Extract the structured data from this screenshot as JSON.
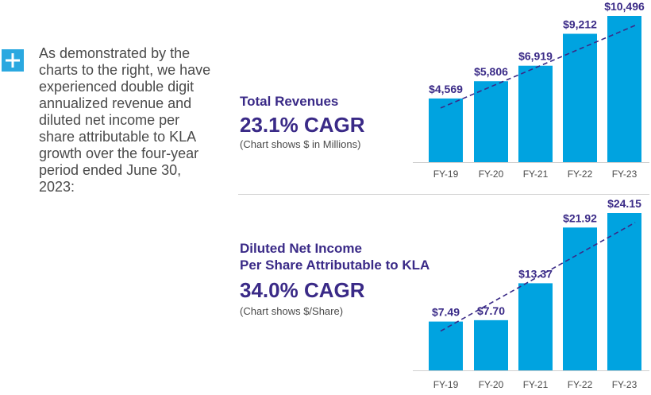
{
  "intro": {
    "icon": "plus-icon",
    "text": "As demonstrated by the charts to the right, we have experienced double digit annualized revenue and diluted net income per share attributable to KLA growth over the four-year period ended June 30, 2023:"
  },
  "colors": {
    "bar": "#00a3e0",
    "title": "#3a2a87",
    "plus_box": "#2aa8e0",
    "trend": "#3a2a87"
  },
  "chart_data": [
    {
      "type": "bar",
      "title": "Total Revenues",
      "cagr": "23.1% CAGR",
      "note": "(Chart shows $ in Millions)",
      "categories": [
        "FY-19",
        "FY-20",
        "FY-21",
        "FY-22",
        "FY-23"
      ],
      "values": [
        4569,
        5806,
        6919,
        9212,
        10496
      ],
      "value_labels": [
        "$4,569",
        "$5,806",
        "$6,919",
        "$9,212",
        "$10,496"
      ],
      "ylim": [
        0,
        10496
      ],
      "trendline": "dashed"
    },
    {
      "type": "bar",
      "title_line1": "Diluted Net Income",
      "title_line2": "Per Share Attributable to KLA",
      "cagr": "34.0% CAGR",
      "note": "(Chart shows $/Share)",
      "categories": [
        "FY-19",
        "FY-20",
        "FY-21",
        "FY-22",
        "FY-23"
      ],
      "values": [
        7.49,
        7.7,
        13.37,
        21.92,
        24.15
      ],
      "value_labels": [
        "$7.49",
        "$7.70",
        "$13.37",
        "$21.92",
        "$24.15"
      ],
      "ylim": [
        0,
        24.15
      ],
      "trendline": "dashed"
    }
  ]
}
